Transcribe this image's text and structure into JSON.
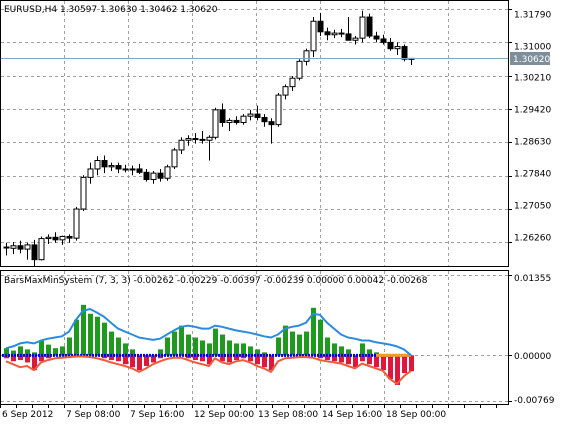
{
  "symbol_header": "EURUSD,H4  1.30597 1.30630 1.30462 1.30620",
  "price_axis_labels": [
    "1.31790",
    "1.31000",
    "1.30210",
    "1.29420",
    "1.28630",
    "1.27840",
    "1.27050",
    "1.26260"
  ],
  "current_price_label": "1.30620",
  "indicator_header": "BarsMaxMinSystem (7, 3, 3) -0.00262 -0.00229 -0.00397 -0.00239 0.00000 0.00042 -0.00268",
  "indicator_axis_labels": [
    "0.01355",
    "0.00000",
    "-0.00769"
  ],
  "time_axis_labels": [
    "6 Sep 2012",
    "7 Sep 08:00",
    "7 Sep 16:00",
    "12 Sep 00:00",
    "13 Sep 08:00",
    "14 Sep 16:00",
    "18 Sep 00:00"
  ],
  "colors": {
    "background": "#ffffff",
    "grid": "#a0a0a0",
    "candle": "#000000",
    "current_price_line": "#8aa5b5",
    "current_price_box": "#7f8f9a",
    "hist_up": "#1e9a1e",
    "hist_down": "#e0163c",
    "line_blue": "#2a8be0",
    "line_red": "#f05b3c",
    "zero_dots": "#0000ee",
    "signal_orange": "#f0a020"
  },
  "chart_data": [
    {
      "type": "candlestick",
      "title": "EURUSD,H4",
      "ohlc_header": {
        "open": 1.30597,
        "high": 1.3063,
        "low": 1.30462,
        "close": 1.3062
      },
      "ylim": [
        1.257,
        1.3198
      ],
      "current_price": 1.3062,
      "grid": true,
      "candles": [
        {
          "o": 1.2615,
          "h": 1.2625,
          "l": 1.2595,
          "c": 1.2613
        },
        {
          "o": 1.2612,
          "h": 1.2627,
          "l": 1.2598,
          "c": 1.2618
        },
        {
          "o": 1.2618,
          "h": 1.263,
          "l": 1.26,
          "c": 1.261
        },
        {
          "o": 1.261,
          "h": 1.2625,
          "l": 1.2585,
          "c": 1.262
        },
        {
          "o": 1.262,
          "h": 1.2632,
          "l": 1.257,
          "c": 1.2585
        },
        {
          "o": 1.2585,
          "h": 1.264,
          "l": 1.2583,
          "c": 1.2635
        },
        {
          "o": 1.2635,
          "h": 1.2645,
          "l": 1.2622,
          "c": 1.2638
        },
        {
          "o": 1.2638,
          "h": 1.265,
          "l": 1.2625,
          "c": 1.2632
        },
        {
          "o": 1.2632,
          "h": 1.2642,
          "l": 1.262,
          "c": 1.264
        },
        {
          "o": 1.264,
          "h": 1.2645,
          "l": 1.2625,
          "c": 1.2636
        },
        {
          "o": 1.2636,
          "h": 1.271,
          "l": 1.263,
          "c": 1.2705
        },
        {
          "o": 1.2705,
          "h": 1.2785,
          "l": 1.27,
          "c": 1.278
        },
        {
          "o": 1.278,
          "h": 1.2815,
          "l": 1.2765,
          "c": 1.28
        },
        {
          "o": 1.28,
          "h": 1.283,
          "l": 1.2785,
          "c": 1.282
        },
        {
          "o": 1.282,
          "h": 1.2832,
          "l": 1.279,
          "c": 1.2805
        },
        {
          "o": 1.2805,
          "h": 1.2815,
          "l": 1.2795,
          "c": 1.2808
        },
        {
          "o": 1.2808,
          "h": 1.2815,
          "l": 1.279,
          "c": 1.28
        },
        {
          "o": 1.28,
          "h": 1.281,
          "l": 1.2792,
          "c": 1.2798
        },
        {
          "o": 1.2798,
          "h": 1.2808,
          "l": 1.2785,
          "c": 1.28
        },
        {
          "o": 1.28,
          "h": 1.2812,
          "l": 1.2788,
          "c": 1.2792
        },
        {
          "o": 1.2792,
          "h": 1.28,
          "l": 1.277,
          "c": 1.2775
        },
        {
          "o": 1.2775,
          "h": 1.2795,
          "l": 1.2765,
          "c": 1.279
        },
        {
          "o": 1.279,
          "h": 1.28,
          "l": 1.277,
          "c": 1.2778
        },
        {
          "o": 1.2778,
          "h": 1.281,
          "l": 1.2772,
          "c": 1.2805
        },
        {
          "o": 1.2805,
          "h": 1.285,
          "l": 1.28,
          "c": 1.2845
        },
        {
          "o": 1.2845,
          "h": 1.2875,
          "l": 1.2835,
          "c": 1.2868
        },
        {
          "o": 1.2868,
          "h": 1.288,
          "l": 1.2855,
          "c": 1.2872
        },
        {
          "o": 1.2872,
          "h": 1.2885,
          "l": 1.286,
          "c": 1.287
        },
        {
          "o": 1.287,
          "h": 1.289,
          "l": 1.286,
          "c": 1.2868
        },
        {
          "o": 1.2868,
          "h": 1.288,
          "l": 1.282,
          "c": 1.2875
        },
        {
          "o": 1.2875,
          "h": 1.2945,
          "l": 1.287,
          "c": 1.294
        },
        {
          "o": 1.294,
          "h": 1.2955,
          "l": 1.29,
          "c": 1.291
        },
        {
          "o": 1.291,
          "h": 1.292,
          "l": 1.289,
          "c": 1.2915
        },
        {
          "o": 1.2915,
          "h": 1.2925,
          "l": 1.2905,
          "c": 1.291
        },
        {
          "o": 1.291,
          "h": 1.293,
          "l": 1.2905,
          "c": 1.2925
        },
        {
          "o": 1.2925,
          "h": 1.294,
          "l": 1.2915,
          "c": 1.293
        },
        {
          "o": 1.293,
          "h": 1.295,
          "l": 1.2915,
          "c": 1.2922
        },
        {
          "o": 1.2922,
          "h": 1.293,
          "l": 1.29,
          "c": 1.2912
        },
        {
          "o": 1.2912,
          "h": 1.292,
          "l": 1.286,
          "c": 1.2905
        },
        {
          "o": 1.2905,
          "h": 1.298,
          "l": 1.29,
          "c": 1.2975
        },
        {
          "o": 1.2975,
          "h": 1.3,
          "l": 1.2965,
          "c": 1.2995
        },
        {
          "o": 1.2995,
          "h": 1.302,
          "l": 1.2985,
          "c": 1.3015
        },
        {
          "o": 1.3015,
          "h": 1.306,
          "l": 1.301,
          "c": 1.3055
        },
        {
          "o": 1.3055,
          "h": 1.3085,
          "l": 1.3045,
          "c": 1.308
        },
        {
          "o": 1.308,
          "h": 1.316,
          "l": 1.3065,
          "c": 1.315
        },
        {
          "o": 1.315,
          "h": 1.317,
          "l": 1.3115,
          "c": 1.3125
        },
        {
          "o": 1.3125,
          "h": 1.3135,
          "l": 1.3105,
          "c": 1.3118
        },
        {
          "o": 1.3118,
          "h": 1.313,
          "l": 1.311,
          "c": 1.3122
        },
        {
          "o": 1.3122,
          "h": 1.3132,
          "l": 1.3112,
          "c": 1.312
        },
        {
          "o": 1.312,
          "h": 1.316,
          "l": 1.311,
          "c": 1.3105
        },
        {
          "o": 1.3105,
          "h": 1.3115,
          "l": 1.3095,
          "c": 1.311
        },
        {
          "o": 1.311,
          "h": 1.3175,
          "l": 1.31,
          "c": 1.316
        },
        {
          "o": 1.316,
          "h": 1.3168,
          "l": 1.311,
          "c": 1.3115
        },
        {
          "o": 1.3115,
          "h": 1.3125,
          "l": 1.31,
          "c": 1.3108
        },
        {
          "o": 1.3108,
          "h": 1.3118,
          "l": 1.3095,
          "c": 1.31
        },
        {
          "o": 1.31,
          "h": 1.311,
          "l": 1.308,
          "c": 1.3085
        },
        {
          "o": 1.3085,
          "h": 1.31,
          "l": 1.307,
          "c": 1.309
        },
        {
          "o": 1.309,
          "h": 1.3095,
          "l": 1.3055,
          "c": 1.306
        },
        {
          "o": 1.30597,
          "h": 1.3063,
          "l": 1.30462,
          "c": 1.3062
        }
      ]
    },
    {
      "type": "bar",
      "title": "BarsMaxMinSystem (7, 3, 3)",
      "values_header": [
        -0.00262,
        -0.00229,
        -0.00397,
        -0.00239,
        0.0,
        0.00042,
        -0.00268
      ],
      "ylim": [
        -0.0082,
        0.0142
      ],
      "histogram_up": [
        0.0012,
        0.0008,
        0.0015,
        0.001,
        0.0005,
        0.0025,
        0.0018,
        0.0012,
        0.0015,
        0.003,
        0.006,
        0.0085,
        0.007,
        0.0065,
        0.0055,
        0.004,
        0.003,
        0.002,
        0.001,
        0,
        0,
        0,
        0.001,
        0.003,
        0.004,
        0.005,
        0.0035,
        0.003,
        0.0025,
        0.002,
        0.0045,
        0.0035,
        0.0025,
        0.002,
        0.002,
        0.0015,
        0.001,
        0.0005,
        0,
        0.003,
        0.005,
        0.004,
        0.0035,
        0.004,
        0.008,
        0.006,
        0.003,
        0.002,
        0.0015,
        0.001,
        0,
        0.002,
        0.001,
        0.0005,
        0,
        0,
        0,
        0,
        0
      ],
      "histogram_down": [
        -0.0005,
        -0.001,
        -0.0008,
        -0.0012,
        -0.0025,
        -0.001,
        -0.0005,
        0,
        0,
        0,
        0,
        0,
        0,
        0,
        -0.0005,
        -0.0008,
        -0.001,
        -0.0015,
        -0.002,
        -0.0025,
        -0.0018,
        -0.0012,
        -0.0005,
        0,
        0,
        0,
        -0.0005,
        -0.0008,
        -0.001,
        -0.0015,
        0,
        -0.001,
        -0.0012,
        -0.0008,
        -0.0005,
        -0.001,
        -0.0015,
        -0.002,
        -0.0025,
        0,
        0,
        0,
        0,
        0,
        0,
        -0.0005,
        -0.0008,
        -0.001,
        -0.0012,
        -0.0015,
        -0.002,
        -0.001,
        -0.0015,
        -0.002,
        -0.0025,
        -0.004,
        -0.005,
        -0.003,
        -0.00268
      ],
      "line_upper": [
        0.0012,
        0.0015,
        0.002,
        0.0022,
        0.002,
        0.0025,
        0.0028,
        0.003,
        0.0032,
        0.004,
        0.006,
        0.0075,
        0.0078,
        0.0072,
        0.0065,
        0.0055,
        0.0045,
        0.004,
        0.0035,
        0.003,
        0.0028,
        0.0026,
        0.0028,
        0.0035,
        0.0042,
        0.0048,
        0.005,
        0.0048,
        0.0045,
        0.0045,
        0.005,
        0.0048,
        0.0045,
        0.0042,
        0.004,
        0.0038,
        0.0035,
        0.0032,
        0.003,
        0.0035,
        0.0045,
        0.0048,
        0.005,
        0.0055,
        0.007,
        0.0068,
        0.0055,
        0.0045,
        0.0035,
        0.003,
        0.0028,
        0.0025,
        0.0025,
        0.0022,
        0.002,
        0.0018,
        0.0015,
        0.001,
        0.0
      ],
      "line_lower": [
        -0.001,
        -0.0015,
        -0.002,
        -0.0018,
        -0.0025,
        -0.0012,
        -0.0008,
        -0.0005,
        -0.0004,
        -0.0003,
        -0.0002,
        -0.0002,
        -0.0003,
        -0.0005,
        -0.0008,
        -0.0012,
        -0.0015,
        -0.0018,
        -0.0022,
        -0.0028,
        -0.0022,
        -0.0015,
        -0.001,
        -0.0006,
        -0.0004,
        -0.0004,
        -0.0008,
        -0.0012,
        -0.0015,
        -0.0018,
        -0.0005,
        -0.0012,
        -0.0015,
        -0.001,
        -0.0008,
        -0.0012,
        -0.0018,
        -0.0022,
        -0.0028,
        -0.001,
        -0.0005,
        -0.0004,
        -0.0003,
        -0.0003,
        -0.0004,
        -0.0008,
        -0.001,
        -0.0012,
        -0.0014,
        -0.0018,
        -0.0022,
        -0.0014,
        -0.0018,
        -0.0022,
        -0.0026,
        -0.004,
        -0.0048,
        -0.0035,
        -0.0026
      ],
      "zero_line": 0.0
    }
  ]
}
